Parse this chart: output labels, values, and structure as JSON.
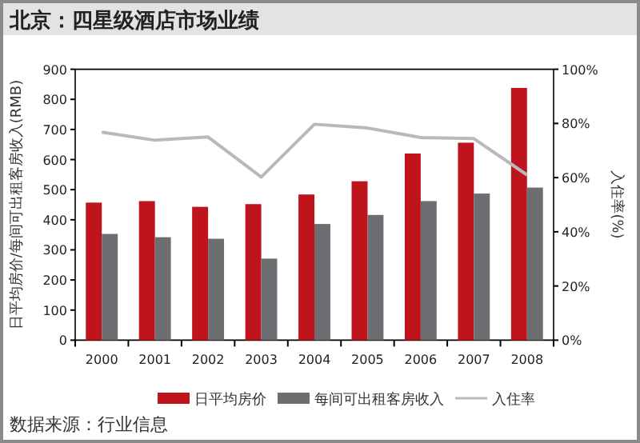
{
  "chart_data": {
    "type": "bar",
    "title": "北京：四星级酒店市场业绩",
    "ylabel": "日平均房价/每间可出租客房收入(RMB)",
    "y2label": "入住率(%)",
    "annotations": [
      "数据来源：行业信息"
    ],
    "categories": [
      "2000",
      "2001",
      "2002",
      "2003",
      "2004",
      "2005",
      "2006",
      "2007",
      "2008"
    ],
    "series": [
      {
        "name": "日平均房价",
        "color": "#c0141c",
        "values": [
          457,
          462,
          443,
          452,
          484,
          528,
          620,
          656,
          838
        ]
      },
      {
        "name": "每间可出租客房收入",
        "color": "#6d6e71",
        "values": [
          353,
          342,
          337,
          271,
          386,
          416,
          462,
          487,
          507
        ]
      },
      {
        "name": "入住率",
        "type": "line",
        "axis": "y2",
        "color": "#b9b9b9",
        "values": [
          76.8,
          73.8,
          75,
          60.2,
          79.7,
          78.3,
          74.8,
          74.4,
          61
        ]
      }
    ],
    "ylim": [
      0,
      900
    ],
    "yticks": [
      0,
      100,
      200,
      300,
      400,
      500,
      600,
      700,
      800,
      900
    ],
    "y2lim": [
      0,
      100
    ],
    "y2ticks": [
      {
        "value": 0,
        "label": "0%"
      },
      {
        "value": 20,
        "label": "20%"
      },
      {
        "value": 40,
        "label": "40%"
      },
      {
        "value": 60,
        "label": "60%"
      },
      {
        "value": 80,
        "label": "80%"
      },
      {
        "value": 100,
        "label": "100%"
      }
    ],
    "legend": "bottom",
    "grid": false
  }
}
